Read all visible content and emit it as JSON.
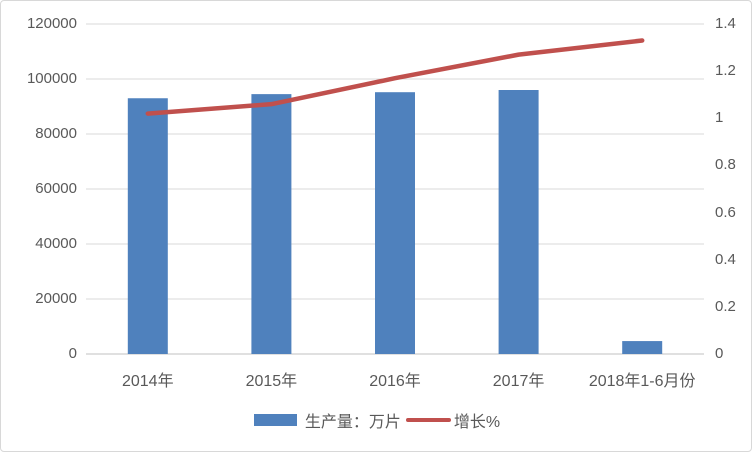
{
  "chart_data": {
    "type": "combo",
    "categories": [
      "2014年",
      "2015年",
      "2016年",
      "2017年",
      "2018年1-6月份"
    ],
    "series": [
      {
        "name": "生产量：万片",
        "type": "bar",
        "axis": "left",
        "color": "#4F81BD",
        "values": [
          93000,
          94500,
          95200,
          96000,
          4700
        ]
      },
      {
        "name": "增长%",
        "type": "line",
        "axis": "right",
        "color": "#C0504D",
        "values": [
          1.02,
          1.06,
          1.17,
          1.27,
          1.33
        ]
      }
    ],
    "left_axis": {
      "min": 0,
      "max": 120000,
      "step": 20000,
      "tick_labels": [
        "0",
        "20000",
        "40000",
        "60000",
        "80000",
        "100000",
        "120000"
      ]
    },
    "right_axis": {
      "min": 0,
      "max": 1.4,
      "step": 0.2,
      "tick_labels": [
        "0",
        "0.2",
        "0.4",
        "0.6",
        "0.8",
        "1",
        "1.2",
        "1.4"
      ]
    },
    "grid": "horizontal",
    "legend_position": "bottom"
  },
  "colors": {
    "bar": "#4F81BD",
    "line": "#C0504D",
    "grid": "#D9D9D9",
    "axis_line": "#C0C0C0",
    "text": "#595959",
    "border": "#D8D8D8",
    "background": "#FFFFFF"
  }
}
